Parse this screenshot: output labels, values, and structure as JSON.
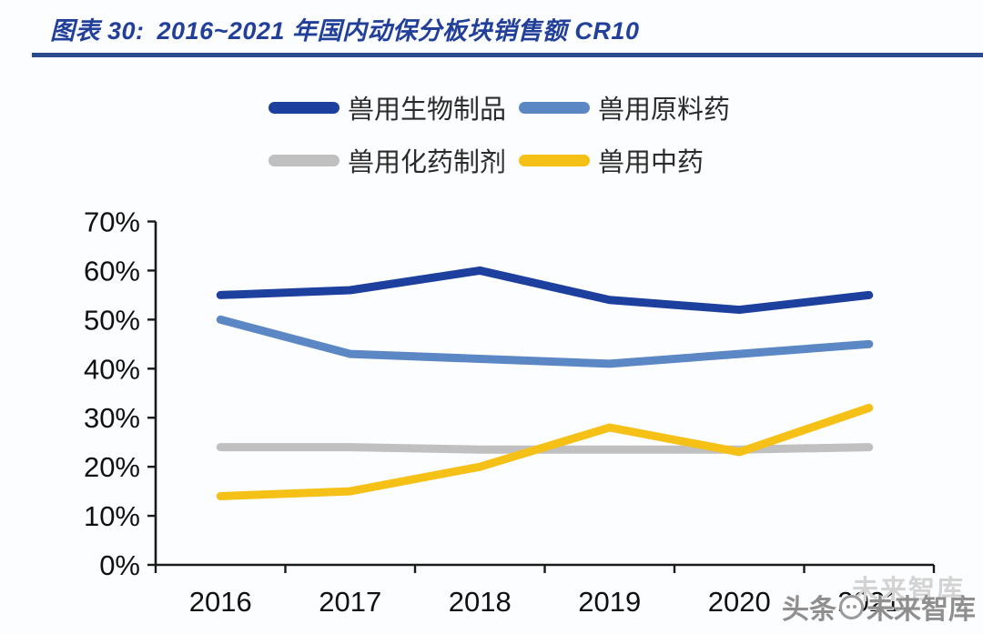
{
  "figure_label": "图表 30:",
  "title": "2016~2021 年国内动保分板块销售额 CR10",
  "colors": {
    "title": "#22409a",
    "rule": "#2a4a8e",
    "axis": "#1a1a1a",
    "series_dark_blue": "#1d409f",
    "series_light_blue": "#5b87c5",
    "series_gray": "#c0c0c0",
    "series_yellow": "#f5c116"
  },
  "legend": {
    "items": [
      {
        "label": "兽用生物制品",
        "color": "#1d409f"
      },
      {
        "label": "兽用原料药",
        "color": "#5b87c5"
      },
      {
        "label": "兽用化药制剂",
        "color": "#c0c0c0"
      },
      {
        "label": "兽用中药",
        "color": "#f5c116"
      }
    ]
  },
  "chart_data": {
    "type": "line",
    "categories": [
      "2016",
      "2017",
      "2018",
      "2019",
      "2020",
      "2021"
    ],
    "series": [
      {
        "name": "兽用生物制品",
        "color": "#1d409f",
        "values": [
          55,
          56,
          60,
          54,
          52,
          55
        ]
      },
      {
        "name": "兽用原料药",
        "color": "#5b87c5",
        "values": [
          50,
          43,
          42,
          41,
          43,
          45
        ]
      },
      {
        "name": "兽用化药制剂",
        "color": "#c0c0c0",
        "values": [
          24,
          24,
          23.5,
          23.5,
          23.5,
          24
        ]
      },
      {
        "name": "兽用中药",
        "color": "#f5c116",
        "values": [
          14,
          15,
          20,
          28,
          23,
          32
        ]
      }
    ],
    "title": "图表 30: 2016~2021 年国内动保分板块销售额 CR10",
    "xlabel": "",
    "ylabel": "",
    "ylim": [
      0,
      70
    ],
    "ytick_step": 10,
    "ytick_labels": [
      "0%",
      "10%",
      "20%",
      "30%",
      "40%",
      "50%",
      "60%",
      "70%"
    ],
    "grid": false,
    "legend_position": "top"
  },
  "watermark": {
    "ghost": "未来智库",
    "prefix": "头条",
    "suffix": "未来智库"
  }
}
